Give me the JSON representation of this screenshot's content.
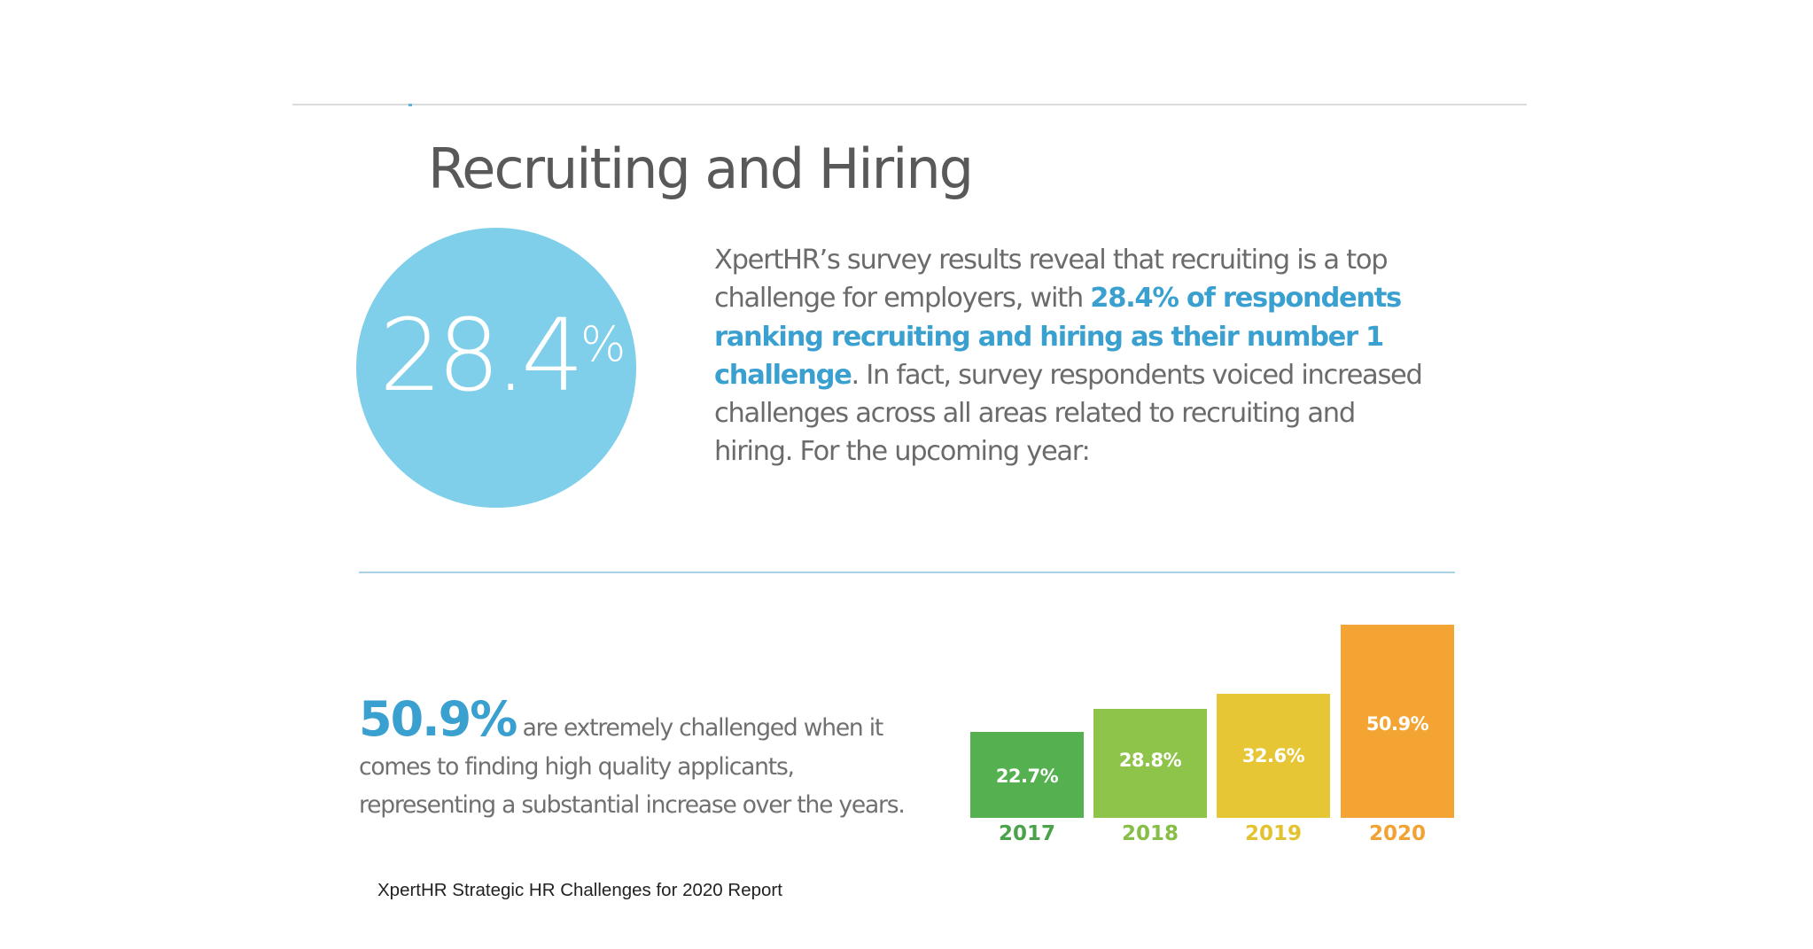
{
  "page": {
    "title": "Recruiting and Hiring",
    "source": "XpertHR Strategic HR Challenges for 2020 Report"
  },
  "highlight_circle": {
    "value": "28.4",
    "unit": "%",
    "color": "#7fcfea"
  },
  "intro": {
    "text_before": "XpertHR’s survey results reveal that recruiting is a top challenge for employers, with ",
    "highlight": "28.4% of respondents ranking recruiting and hiring as their number 1 challenge",
    "text_after": ". In fact, survey respondents voiced increased challenges across all areas related to recruiting and hiring. For the upcoming year:"
  },
  "stat": {
    "value": "50.9%",
    "text": " are extremely challenged when it comes to finding high quality applicants, representing a substantial increase over the years."
  },
  "colors": {
    "accent": "#3aa0cf",
    "text": "#6b6b6b"
  },
  "chart_data": {
    "type": "bar",
    "title": "",
    "xlabel": "",
    "ylabel": "",
    "categories": [
      "2017",
      "2018",
      "2019",
      "2020"
    ],
    "values": [
      22.7,
      28.8,
      32.6,
      50.9
    ],
    "labels": [
      "22.7%",
      "28.8%",
      "32.6%",
      "50.9%"
    ],
    "colors": [
      "#55b04f",
      "#8ec449",
      "#e6c634",
      "#f4a432"
    ],
    "year_label_colors": [
      "#4aa34b",
      "#86be47",
      "#e3c22f",
      "#f1a232"
    ],
    "grid": false,
    "legend": false,
    "ylim": [
      0,
      55
    ]
  }
}
